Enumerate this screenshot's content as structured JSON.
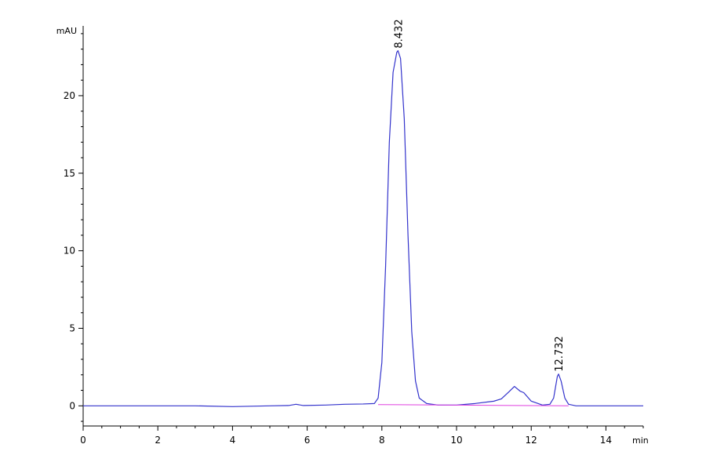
{
  "chart_data": {
    "type": "line",
    "title": "",
    "xlabel": "min",
    "ylabel": "mAU",
    "xlim": [
      0,
      15
    ],
    "ylim": [
      -1.3,
      24.5
    ],
    "grid": false,
    "x_ticks": [
      0,
      2,
      4,
      6,
      8,
      10,
      12,
      14
    ],
    "y_ticks": [
      0,
      5,
      10,
      15,
      20
    ],
    "x_tick_labels": [
      "0",
      "2",
      "4",
      "6",
      "8",
      "10",
      "12",
      "14"
    ],
    "y_tick_labels": [
      "0",
      "5",
      "10",
      "15",
      "20"
    ],
    "series": [
      {
        "color": "#3333cc",
        "x": [
          0,
          1,
          2,
          3,
          4,
          5,
          5.5,
          5.7,
          5.9,
          6.5,
          7.0,
          7.5,
          7.8,
          7.9,
          8.0,
          8.1,
          8.2,
          8.3,
          8.4,
          8.432,
          8.5,
          8.6,
          8.7,
          8.8,
          8.9,
          9.0,
          9.2,
          9.5,
          10.0,
          10.5,
          11.0,
          11.2,
          11.4,
          11.55,
          11.7,
          11.8,
          12.0,
          12.3,
          12.5,
          12.6,
          12.7,
          12.732,
          12.8,
          12.9,
          13.0,
          13.2,
          14.0,
          15.0
        ],
        "y": [
          0.0,
          0.0,
          0.0,
          0.0,
          -0.05,
          0.0,
          0.02,
          0.1,
          0.02,
          0.05,
          0.1,
          0.12,
          0.15,
          0.5,
          2.8,
          9.0,
          17.0,
          21.5,
          22.8,
          22.9,
          22.4,
          18.5,
          11.0,
          4.8,
          1.6,
          0.5,
          0.15,
          0.05,
          0.05,
          0.15,
          0.3,
          0.45,
          0.9,
          1.25,
          0.95,
          0.85,
          0.3,
          0.05,
          0.1,
          0.5,
          1.9,
          2.05,
          1.6,
          0.5,
          0.1,
          0.0,
          0.0,
          0.0
        ]
      },
      {
        "color": "#e040e0",
        "x": [
          7.9,
          13.0
        ],
        "y": [
          0.08,
          0.0
        ]
      }
    ],
    "annotations": [
      {
        "x": 8.432,
        "y": 22.9,
        "text": "8.432"
      },
      {
        "x": 12.732,
        "y": 2.05,
        "text": "12.732"
      }
    ]
  }
}
